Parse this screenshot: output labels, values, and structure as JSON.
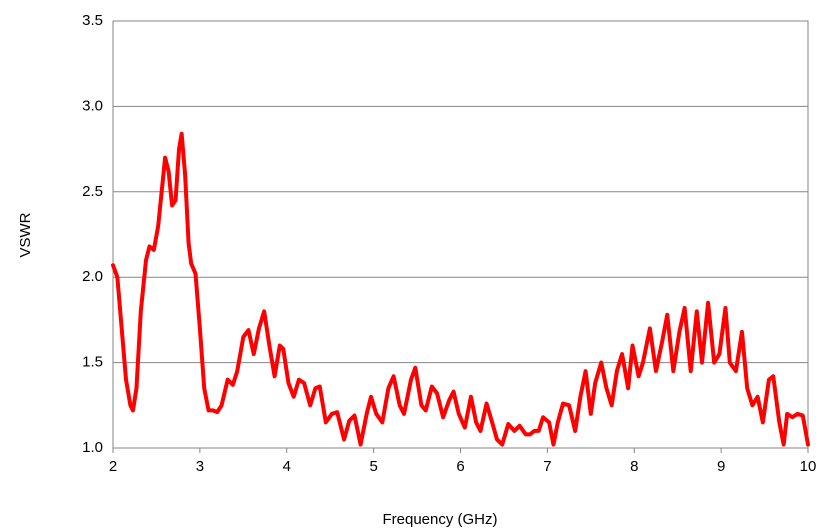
{
  "chart_data": {
    "type": "line",
    "xlabel": "Frequency (GHz)",
    "ylabel": "VSWR",
    "xlim": [
      2,
      10
    ],
    "xticks": [
      2,
      3,
      4,
      5,
      6,
      7,
      8,
      9,
      10
    ],
    "ylim": [
      1,
      3.5
    ],
    "yticks": [
      {
        "value": 1,
        "label": "1.0"
      },
      1.5,
      {
        "value": 2,
        "label": "2.0"
      },
      2.5,
      {
        "value": 3,
        "label": "3.0"
      },
      3.5
    ],
    "grid": true,
    "x": [
      2.0,
      2.05,
      2.1,
      2.15,
      2.2,
      2.23,
      2.27,
      2.32,
      2.38,
      2.42,
      2.47,
      2.52,
      2.57,
      2.6,
      2.64,
      2.68,
      2.72,
      2.76,
      2.79,
      2.83,
      2.87,
      2.9,
      2.95,
      3.0,
      3.05,
      3.1,
      3.15,
      3.2,
      3.25,
      3.32,
      3.38,
      3.43,
      3.5,
      3.56,
      3.62,
      3.68,
      3.74,
      3.8,
      3.86,
      3.92,
      3.96,
      4.02,
      4.08,
      4.14,
      4.2,
      4.27,
      4.33,
      4.38,
      4.45,
      4.52,
      4.58,
      4.66,
      4.72,
      4.78,
      4.85,
      4.92,
      4.97,
      5.03,
      5.1,
      5.17,
      5.23,
      5.3,
      5.35,
      5.43,
      5.48,
      5.55,
      5.6,
      5.67,
      5.73,
      5.8,
      5.87,
      5.92,
      5.98,
      6.05,
      6.12,
      6.18,
      6.23,
      6.3,
      6.37,
      6.42,
      6.48,
      6.55,
      6.62,
      6.68,
      6.75,
      6.8,
      6.85,
      6.9,
      6.95,
      7.02,
      7.07,
      7.12,
      7.18,
      7.25,
      7.32,
      7.38,
      7.44,
      7.5,
      7.55,
      7.62,
      7.68,
      7.74,
      7.8,
      7.86,
      7.93,
      7.98,
      8.05,
      8.1,
      8.18,
      8.25,
      8.32,
      8.38,
      8.45,
      8.52,
      8.58,
      8.65,
      8.72,
      8.78,
      8.85,
      8.92,
      8.98,
      9.05,
      9.1,
      9.17,
      9.24,
      9.3,
      9.36,
      9.42,
      9.48,
      9.55,
      9.6,
      9.67,
      9.72,
      9.76,
      9.82,
      9.88,
      9.94,
      10.0
    ],
    "series": [
      {
        "color": "#ff0000",
        "values": [
          2.07,
          2.0,
          1.7,
          1.4,
          1.25,
          1.22,
          1.35,
          1.8,
          2.1,
          2.18,
          2.16,
          2.3,
          2.55,
          2.7,
          2.62,
          2.42,
          2.45,
          2.75,
          2.84,
          2.6,
          2.2,
          2.08,
          2.02,
          1.7,
          1.35,
          1.22,
          1.22,
          1.21,
          1.25,
          1.4,
          1.37,
          1.45,
          1.65,
          1.69,
          1.55,
          1.7,
          1.8,
          1.6,
          1.42,
          1.6,
          1.58,
          1.38,
          1.3,
          1.4,
          1.38,
          1.25,
          1.35,
          1.36,
          1.15,
          1.2,
          1.21,
          1.05,
          1.16,
          1.19,
          1.02,
          1.2,
          1.3,
          1.2,
          1.15,
          1.35,
          1.42,
          1.25,
          1.2,
          1.4,
          1.47,
          1.25,
          1.22,
          1.36,
          1.32,
          1.18,
          1.28,
          1.33,
          1.2,
          1.12,
          1.3,
          1.15,
          1.1,
          1.26,
          1.14,
          1.05,
          1.02,
          1.14,
          1.1,
          1.13,
          1.08,
          1.08,
          1.1,
          1.1,
          1.18,
          1.15,
          1.02,
          1.15,
          1.26,
          1.25,
          1.1,
          1.3,
          1.45,
          1.2,
          1.38,
          1.5,
          1.35,
          1.25,
          1.45,
          1.55,
          1.35,
          1.6,
          1.42,
          1.5,
          1.7,
          1.45,
          1.62,
          1.78,
          1.45,
          1.68,
          1.82,
          1.45,
          1.8,
          1.5,
          1.85,
          1.5,
          1.55,
          1.82,
          1.5,
          1.45,
          1.68,
          1.35,
          1.25,
          1.3,
          1.15,
          1.4,
          1.42,
          1.15,
          1.02,
          1.2,
          1.18,
          1.2,
          1.19,
          1.02
        ]
      }
    ]
  }
}
